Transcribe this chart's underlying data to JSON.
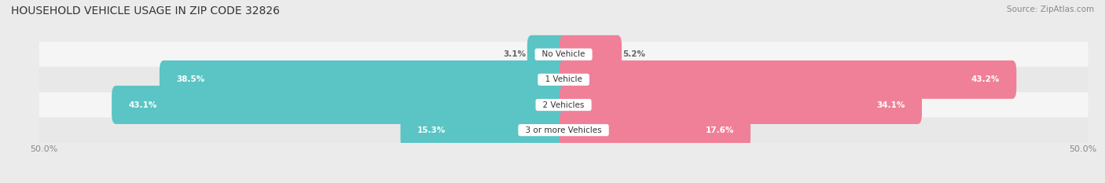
{
  "title": "HOUSEHOLD VEHICLE USAGE IN ZIP CODE 32826",
  "source": "Source: ZipAtlas.com",
  "categories": [
    "No Vehicle",
    "1 Vehicle",
    "2 Vehicles",
    "3 or more Vehicles"
  ],
  "owner_values": [
    3.1,
    38.5,
    43.1,
    15.3
  ],
  "renter_values": [
    5.2,
    43.2,
    34.1,
    17.6
  ],
  "owner_color": "#5BC4C4",
  "renter_color": "#F08098",
  "bg_color": "#EBEBEB",
  "row_bg_even": "#F5F5F5",
  "row_bg_odd": "#E8E8E8",
  "axis_limit": 50.0,
  "title_fontsize": 10,
  "source_fontsize": 7.5,
  "bar_label_fontsize": 7.5,
  "category_fontsize": 7.5,
  "axis_label_fontsize": 8,
  "legend_fontsize": 8
}
